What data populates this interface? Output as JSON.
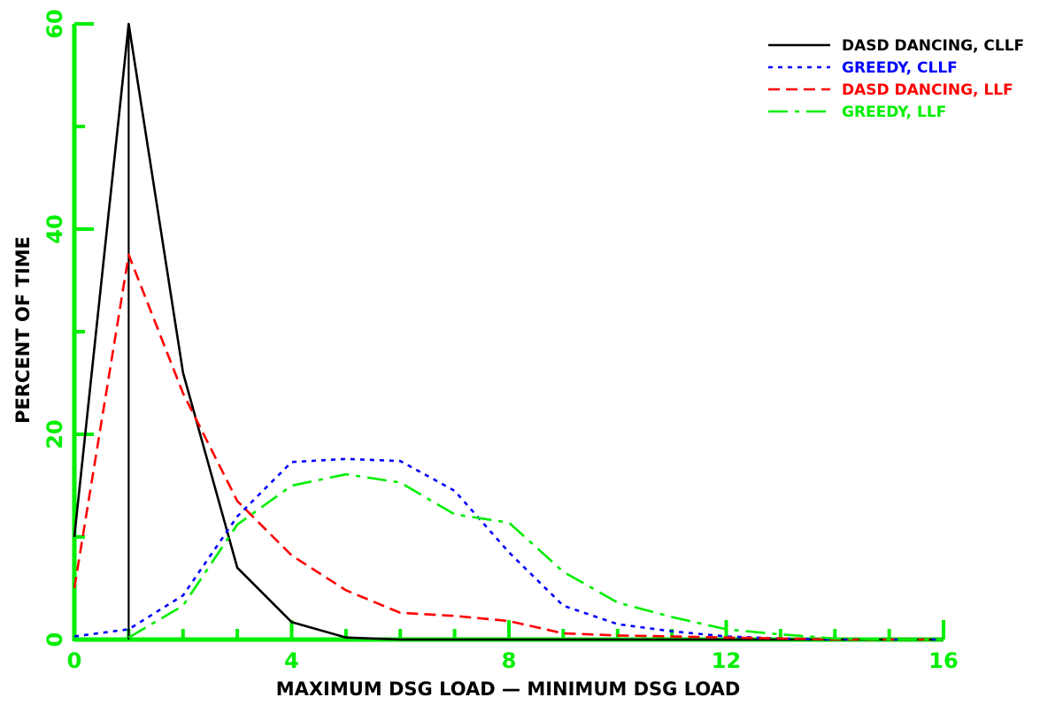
{
  "chart_data": {
    "type": "line",
    "title": "",
    "xlabel": "MAXIMUM DSG LOAD — MINIMUM DSG LOAD",
    "ylabel": "PERCENT OF TIME",
    "xlim": [
      0,
      16
    ],
    "ylim": [
      0,
      60
    ],
    "x_ticks": [
      0,
      4,
      8,
      12,
      16
    ],
    "y_ticks": [
      0,
      20,
      40,
      60
    ],
    "x_minor_step": 1,
    "y_minor_step": 10,
    "grid": false,
    "legend_position": "top-right",
    "axis_color": "#00ee00",
    "series": [
      {
        "name": "DASD DANCING, CLLF",
        "color": "#000000",
        "dash": "solid",
        "points": [
          [
            0,
            10
          ],
          [
            1,
            60
          ],
          [
            2,
            26
          ],
          [
            3,
            7
          ],
          [
            4,
            1.7
          ],
          [
            5,
            0.2
          ],
          [
            6,
            0
          ],
          [
            7,
            0
          ],
          [
            8,
            0
          ],
          [
            16,
            0
          ]
        ],
        "drop_line_x": 1
      },
      {
        "name": "GREEDY, CLLF",
        "color": "#0000ff",
        "dash": "dotted",
        "points": [
          [
            0,
            0.3
          ],
          [
            1,
            1
          ],
          [
            2,
            4.3
          ],
          [
            3,
            12
          ],
          [
            4,
            17.3
          ],
          [
            5,
            17.6
          ],
          [
            6,
            17.4
          ],
          [
            7,
            14.5
          ],
          [
            8,
            8.5
          ],
          [
            9,
            3.3
          ],
          [
            10,
            1.5
          ],
          [
            11,
            0.8
          ],
          [
            12,
            0.3
          ],
          [
            13,
            0.1
          ],
          [
            14,
            0
          ],
          [
            16,
            0
          ]
        ]
      },
      {
        "name": "DASD DANCING, LLF",
        "color": "#ff0000",
        "dash": "dashed",
        "points": [
          [
            0,
            5
          ],
          [
            1,
            37.5
          ],
          [
            2,
            24
          ],
          [
            3,
            13.5
          ],
          [
            4,
            8.2
          ],
          [
            5,
            4.8
          ],
          [
            6,
            2.6
          ],
          [
            7,
            2.3
          ],
          [
            8,
            1.8
          ],
          [
            9,
            0.6
          ],
          [
            10,
            0.4
          ],
          [
            11,
            0.3
          ],
          [
            12,
            0.2
          ],
          [
            13,
            0.1
          ],
          [
            14,
            0
          ],
          [
            16,
            0
          ]
        ]
      },
      {
        "name": "GREEDY, LLF",
        "color": "#00ee00",
        "dash": "dashdot",
        "points": [
          [
            1,
            0.2
          ],
          [
            2,
            3.3
          ],
          [
            3,
            11.2
          ],
          [
            4,
            15
          ],
          [
            5,
            16.1
          ],
          [
            6,
            15.3
          ],
          [
            7,
            12.2
          ],
          [
            8,
            11.4
          ],
          [
            9,
            6.6
          ],
          [
            10,
            3.6
          ],
          [
            11,
            2.2
          ],
          [
            12,
            1
          ],
          [
            13,
            0.5
          ],
          [
            14,
            0.1
          ],
          [
            15,
            0
          ],
          [
            16,
            0
          ]
        ]
      }
    ]
  }
}
